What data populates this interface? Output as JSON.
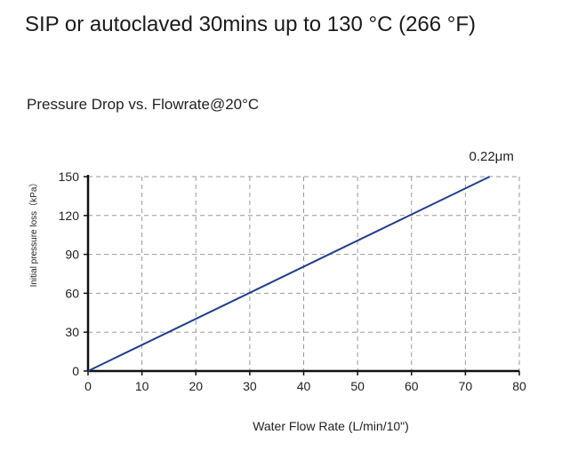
{
  "page": {
    "heading": "SIP or autoclaved 30mins up to 130 °C (266 °F)"
  },
  "chart_data": {
    "type": "line",
    "title": "Pressure Drop vs. Flowrate@20°C",
    "xlabel": "Water Flow Rate (L/min/10\")",
    "ylabel": "Initial pressure loss（kPa）",
    "xlim": [
      0,
      80
    ],
    "ylim": [
      0,
      150
    ],
    "xticks": [
      0,
      10,
      20,
      30,
      40,
      50,
      60,
      70,
      80
    ],
    "yticks": [
      0,
      30,
      60,
      90,
      120,
      150
    ],
    "grid": true,
    "grid_style": "dashed",
    "series": [
      {
        "name": "0.22μm",
        "color": "#1f3d8c",
        "x": [
          0,
          74.5
        ],
        "y": [
          0,
          150
        ]
      }
    ]
  }
}
